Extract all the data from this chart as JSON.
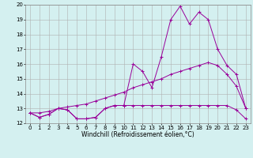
{
  "x": [
    0,
    1,
    2,
    3,
    4,
    5,
    6,
    7,
    8,
    9,
    10,
    11,
    12,
    13,
    14,
    15,
    16,
    17,
    18,
    19,
    20,
    21,
    22,
    23
  ],
  "line1": [
    12.7,
    12.4,
    12.6,
    13.0,
    12.9,
    12.3,
    12.3,
    12.4,
    13.0,
    13.2,
    13.2,
    16.0,
    15.5,
    14.4,
    16.5,
    19.0,
    19.9,
    18.7,
    19.5,
    19.0,
    17.0,
    15.9,
    15.3,
    13.0
  ],
  "line2": [
    12.7,
    12.4,
    12.6,
    13.0,
    12.9,
    12.3,
    12.3,
    12.4,
    13.0,
    13.2,
    13.2,
    13.2,
    13.2,
    13.2,
    13.2,
    13.2,
    13.2,
    13.2,
    13.2,
    13.2,
    13.2,
    13.2,
    12.9,
    12.3
  ],
  "line3": [
    12.7,
    12.7,
    12.8,
    13.0,
    13.1,
    13.2,
    13.3,
    13.5,
    13.7,
    13.9,
    14.1,
    14.4,
    14.6,
    14.8,
    15.0,
    15.3,
    15.5,
    15.7,
    15.9,
    16.1,
    15.9,
    15.3,
    14.5,
    13.0
  ],
  "ylim": [
    12,
    20
  ],
  "xlim": [
    -0.5,
    23.5
  ],
  "yticks": [
    12,
    13,
    14,
    15,
    16,
    17,
    18,
    19,
    20
  ],
  "xticks": [
    0,
    1,
    2,
    3,
    4,
    5,
    6,
    7,
    8,
    9,
    10,
    11,
    12,
    13,
    14,
    15,
    16,
    17,
    18,
    19,
    20,
    21,
    22,
    23
  ],
  "xlabel": "Windchill (Refroidissement éolien,°C)",
  "color": "#990099",
  "bg_color": "#d4f0f0",
  "grid_color": "#b0b0b0",
  "label_fontsize": 5.5,
  "tick_fontsize": 5.0
}
